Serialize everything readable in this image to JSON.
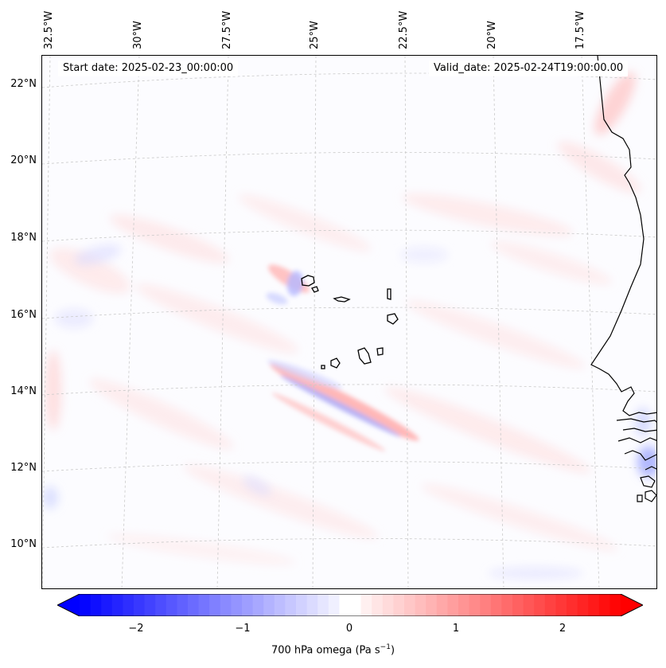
{
  "map": {
    "start_date": "Start date: 2025-02-23_00:00:00",
    "valid_date": "Valid_date: 2025-02-24T19:00:00.00",
    "lon_labels": [
      "32.5°W",
      "30°W",
      "27.5°W",
      "25°W",
      "22.5°W",
      "20°W",
      "17.5°W"
    ],
    "lat_labels": [
      "22°N",
      "20°N",
      "18°N",
      "16°N",
      "14°N",
      "12°N",
      "10°N"
    ],
    "colors": {
      "coast": "#000000",
      "grid": "#cccccc",
      "neg": "#0000ff",
      "pos": "#ff0000"
    }
  },
  "colorbar": {
    "label_text": "700 hPa omega (Pa s",
    "label_sup": "−1",
    "label_close": ")",
    "ticks": [
      "−2",
      "−1",
      "0",
      "1",
      "2"
    ],
    "range": [
      -2.5,
      2.5
    ]
  }
}
